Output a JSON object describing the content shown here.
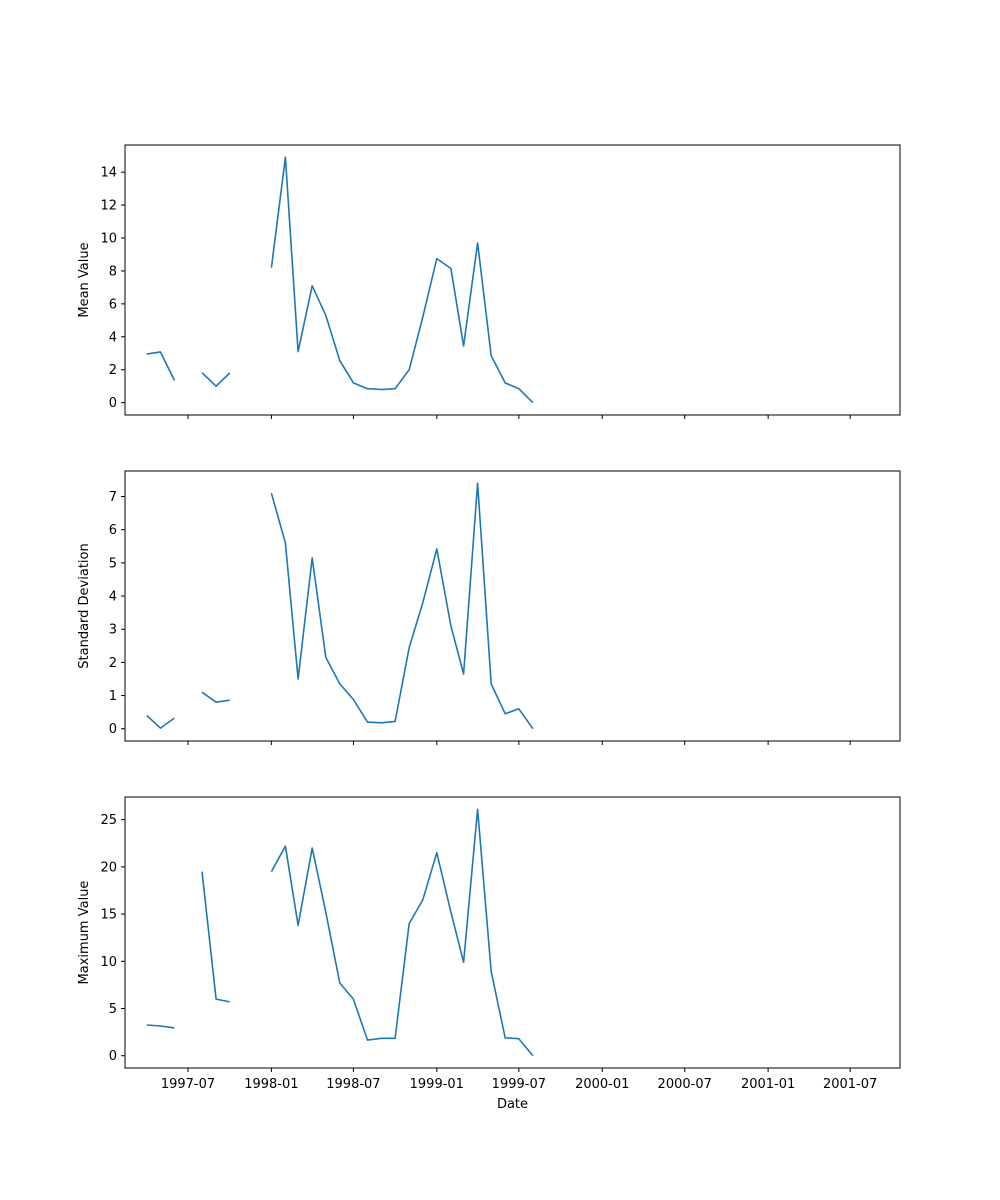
{
  "chart_data": [
    {
      "type": "line",
      "ylabel": "Mean Value",
      "ylim": [
        -0.75,
        15.65
      ],
      "yticks": [
        0,
        2,
        4,
        6,
        8,
        10,
        12,
        14
      ],
      "color": "#1f77b4",
      "segments": [
        [
          [
            "1997-04-01",
            2.95
          ],
          [
            "1997-05-01",
            3.08
          ],
          [
            "1997-06-01",
            1.35
          ]
        ],
        [
          [
            "1997-08-01",
            1.82
          ],
          [
            "1997-09-01",
            1.0
          ],
          [
            "1997-10-01",
            1.8
          ]
        ],
        [
          [
            "1998-01-01",
            8.2
          ],
          [
            "1998-02-01",
            14.9
          ],
          [
            "1998-03-01",
            3.1
          ],
          [
            "1998-04-01",
            7.1
          ],
          [
            "1998-05-01",
            5.3
          ],
          [
            "1998-06-01",
            2.55
          ],
          [
            "1998-07-01",
            1.2
          ],
          [
            "1998-08-01",
            0.85
          ],
          [
            "1998-09-01",
            0.8
          ],
          [
            "1998-10-01",
            0.85
          ],
          [
            "1998-11-01",
            2.0
          ],
          [
            "1998-12-01",
            5.2
          ],
          [
            "1999-01-01",
            8.75
          ],
          [
            "1999-02-01",
            8.15
          ],
          [
            "1999-03-01",
            3.45
          ],
          [
            "1999-04-01",
            9.7
          ],
          [
            "1999-05-01",
            2.85
          ],
          [
            "1999-06-01",
            1.2
          ],
          [
            "1999-07-01",
            0.85
          ],
          [
            "1999-08-01",
            0.0
          ]
        ]
      ]
    },
    {
      "type": "line",
      "ylabel": "Standard Deviation",
      "ylim": [
        -0.37,
        7.77
      ],
      "yticks": [
        0,
        1,
        2,
        3,
        4,
        5,
        6,
        7
      ],
      "color": "#1f77b4",
      "segments": [
        [
          [
            "1997-04-01",
            0.4
          ],
          [
            "1997-05-01",
            0.02
          ],
          [
            "1997-06-01",
            0.32
          ]
        ],
        [
          [
            "1997-08-01",
            1.1
          ],
          [
            "1997-09-01",
            0.8
          ],
          [
            "1997-10-01",
            0.86
          ]
        ],
        [
          [
            "1998-01-01",
            7.1
          ],
          [
            "1998-02-01",
            5.6
          ],
          [
            "1998-03-01",
            1.5
          ],
          [
            "1998-04-01",
            5.15
          ],
          [
            "1998-05-01",
            2.15
          ],
          [
            "1998-06-01",
            1.35
          ],
          [
            "1998-07-01",
            0.88
          ],
          [
            "1998-08-01",
            0.2
          ],
          [
            "1998-09-01",
            0.18
          ],
          [
            "1998-10-01",
            0.22
          ],
          [
            "1998-11-01",
            2.45
          ],
          [
            "1998-12-01",
            3.8
          ],
          [
            "1999-01-01",
            5.42
          ],
          [
            "1999-02-01",
            3.1
          ],
          [
            "1999-03-01",
            1.65
          ],
          [
            "1999-04-01",
            7.4
          ],
          [
            "1999-05-01",
            1.35
          ],
          [
            "1999-06-01",
            0.45
          ],
          [
            "1999-07-01",
            0.6
          ],
          [
            "1999-08-01",
            0.0
          ]
        ]
      ]
    },
    {
      "type": "line",
      "ylabel": "Maximum Value",
      "ylim": [
        -1.3,
        27.4
      ],
      "yticks": [
        0,
        5,
        10,
        15,
        20,
        25
      ],
      "color": "#1f77b4",
      "segments": [
        [
          [
            "1997-04-01",
            3.25
          ],
          [
            "1997-05-01",
            3.15
          ],
          [
            "1997-06-01",
            2.95
          ]
        ],
        [
          [
            "1997-08-01",
            19.5
          ],
          [
            "1997-09-01",
            6.0
          ],
          [
            "1997-10-01",
            5.7
          ]
        ],
        [
          [
            "1998-01-01",
            19.5
          ],
          [
            "1998-02-01",
            22.2
          ],
          [
            "1998-03-01",
            13.8
          ],
          [
            "1998-04-01",
            22.0
          ],
          [
            "1998-05-01",
            15.2
          ],
          [
            "1998-06-01",
            7.7
          ],
          [
            "1998-07-01",
            6.0
          ],
          [
            "1998-08-01",
            1.65
          ],
          [
            "1998-09-01",
            1.85
          ],
          [
            "1998-10-01",
            1.85
          ],
          [
            "1998-11-01",
            14.0
          ],
          [
            "1998-12-01",
            16.5
          ],
          [
            "1999-01-01",
            21.5
          ],
          [
            "1999-02-01",
            15.2
          ],
          [
            "1999-03-01",
            9.9
          ],
          [
            "1999-04-01",
            26.1
          ],
          [
            "1999-05-01",
            8.9
          ],
          [
            "1999-06-01",
            1.9
          ],
          [
            "1999-07-01",
            1.8
          ],
          [
            "1999-08-01",
            0.0
          ]
        ]
      ]
    }
  ],
  "x_axis": {
    "label": "Date",
    "range": [
      "1997-02-12",
      "2001-10-19"
    ],
    "ticks": [
      "1997-07",
      "1998-01",
      "1998-07",
      "1999-01",
      "1999-07",
      "2000-01",
      "2000-07",
      "2001-01",
      "2001-07"
    ]
  }
}
